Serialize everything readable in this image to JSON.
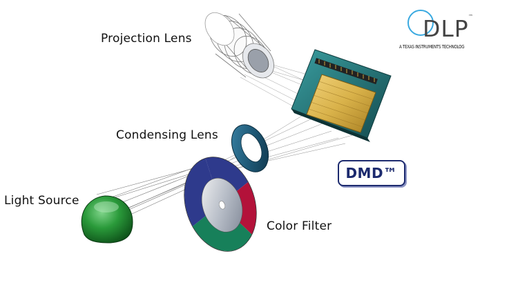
{
  "labels": {
    "projection_lens": "Projection Lens",
    "condensing_lens": "Condensing Lens",
    "light_source": "Light Source",
    "color_filter": "Color Filter"
  },
  "badge": {
    "text": "DMD™"
  },
  "logo": {
    "word": "DLP",
    "trademark": "™",
    "tagline": "A TEXAS INSTRUMENTS TECHNOLOG"
  },
  "colors": {
    "lens_ring": "#1f5a78",
    "light_source": "#1e8a2f",
    "filter_red": "#b3123a",
    "filter_green": "#17805a",
    "filter_blue": "#2e3a8c",
    "dmd_board": "#1f6e72",
    "dmd_chip": "#d9b24a",
    "badge": "#1c2a6e",
    "logo_circle": "#39a9e0"
  }
}
